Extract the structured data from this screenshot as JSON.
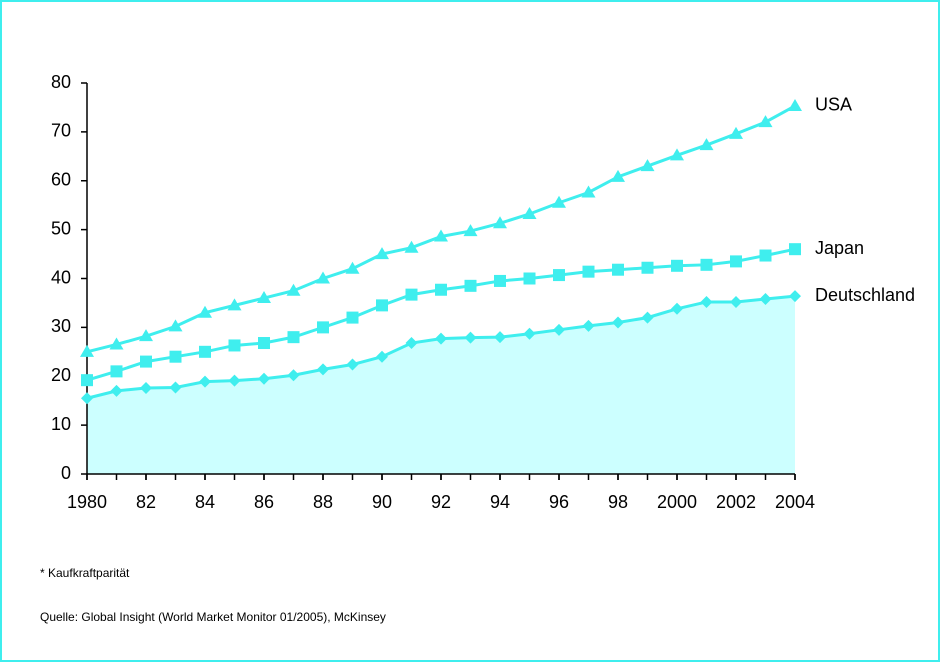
{
  "chart_data": {
    "type": "line",
    "x": [
      1980,
      1981,
      1982,
      1983,
      1984,
      1985,
      1986,
      1987,
      1988,
      1989,
      1990,
      1991,
      1992,
      1993,
      1994,
      1995,
      1996,
      1997,
      1998,
      1999,
      2000,
      2001,
      2002,
      2003,
      2004
    ],
    "xlim": [
      1980,
      2004
    ],
    "xticks": [
      1980,
      {
        "value": 1982,
        "label": "82"
      },
      {
        "value": 1984,
        "label": "84"
      },
      {
        "value": 1986,
        "label": "86"
      },
      {
        "value": 1988,
        "label": "88"
      },
      {
        "value": 1990,
        "label": "90"
      },
      {
        "value": 1992,
        "label": "92"
      },
      {
        "value": 1994,
        "label": "94"
      },
      {
        "value": 1996,
        "label": "96"
      },
      {
        "value": 1998,
        "label": "98"
      },
      2000,
      2002,
      2004
    ],
    "ylim": [
      0,
      80
    ],
    "yticks": [
      0,
      10,
      20,
      30,
      40,
      50,
      60,
      70,
      80
    ],
    "series": [
      {
        "name": "USA",
        "color": "#3feeee",
        "marker": "triangle",
        "values": [
          25,
          26.5,
          28.2,
          30.2,
          33,
          34.5,
          36,
          37.5,
          40,
          42,
          45,
          46.3,
          48.6,
          49.7,
          51.3,
          53.2,
          55.5,
          57.6,
          60.8,
          63,
          65.2,
          67.3,
          69.6,
          72,
          75.3
        ]
      },
      {
        "name": "Japan",
        "color": "#3feeee",
        "marker": "square",
        "values": [
          19.2,
          21,
          23,
          24,
          25,
          26.3,
          26.8,
          28,
          30,
          32,
          34.5,
          36.7,
          37.7,
          38.5,
          39.5,
          40,
          40.7,
          41.4,
          41.8,
          42.2,
          42.6,
          42.8,
          43.5,
          44.7,
          46
        ]
      },
      {
        "name": "Deutschland",
        "color": "#3feeee",
        "marker": "diamond",
        "area_color": "#ccffff",
        "values": [
          15.5,
          17,
          17.6,
          17.7,
          18.9,
          19.1,
          19.5,
          20.2,
          21.4,
          22.4,
          24,
          26.8,
          27.7,
          27.9,
          28,
          28.7,
          29.5,
          30.3,
          31,
          32,
          33.8,
          35.2,
          35.2,
          35.8,
          36.4
        ]
      }
    ],
    "footnote": "*  Kaufkraftparität",
    "source": "Quelle: Global Insight (World Market Monitor 01/2005), McKinsey"
  }
}
